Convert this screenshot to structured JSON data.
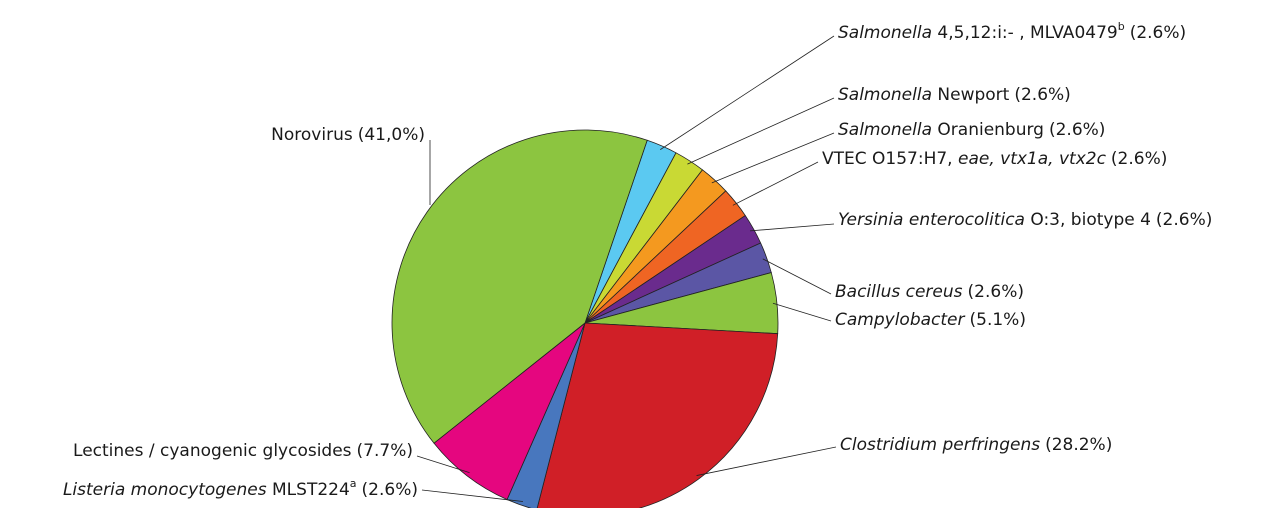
{
  "chart_data": {
    "type": "pie",
    "categories": [
      [
        {
          "text": "Salmonella",
          "italic": true
        },
        {
          "text": " 4,5,12:i:- , MLVA0479"
        },
        {
          "text": "b",
          "sup": true
        }
      ],
      [
        {
          "text": "Salmonella",
          "italic": true
        },
        {
          "text": " Newport"
        }
      ],
      [
        {
          "text": "Salmonella",
          "italic": true
        },
        {
          "text": " Oranienburg"
        }
      ],
      [
        {
          "text": "VTEC O157:H7, "
        },
        {
          "text": "eae, vtx1a, vtx2c",
          "italic": true
        }
      ],
      [
        {
          "text": "Yersinia enterocolitica",
          "italic": true
        },
        {
          "text": " O:3, biotype 4"
        }
      ],
      [
        {
          "text": "Bacillus cereus",
          "italic": true
        }
      ],
      [
        {
          "text": "Campylobacter",
          "italic": true
        }
      ],
      [
        {
          "text": "Clostridium perfringens",
          "italic": true
        }
      ],
      [
        {
          "text": "Listeria monocytogenes",
          "italic": true
        },
        {
          "text": " MLST224"
        },
        {
          "text": "a",
          "sup": true
        }
      ],
      [
        {
          "text": "Lectines / cyanogenic glycosides"
        }
      ],
      [
        {
          "text": "Norovirus"
        }
      ]
    ],
    "values": [
      2.6,
      2.6,
      2.6,
      2.6,
      2.6,
      2.6,
      5.1,
      28.2,
      2.6,
      7.7,
      41.0
    ],
    "value_labels": [
      "(2.6%)",
      "(2.6%)",
      "(2.6%)",
      "(2.6%)",
      "(2.6%)",
      "(2.6%)",
      "(5.1%)",
      "(28.2%)",
      "(2.6%)",
      "(7.7%)",
      "(41,0%)"
    ],
    "colors": [
      "#5bc9f1",
      "#c9d934",
      "#f4991f",
      "#ef6523",
      "#6a2b8d",
      "#5b56a5",
      "#8cc540",
      "#d01f27",
      "#4877be",
      "#e5067f",
      "#8cc540"
    ]
  }
}
